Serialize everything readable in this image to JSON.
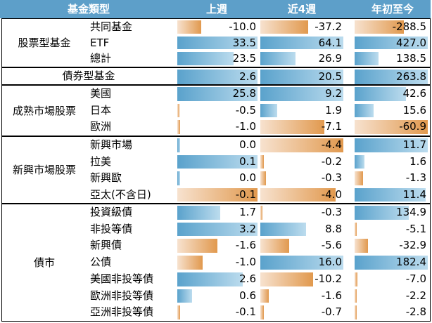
{
  "headers": {
    "category": "基金類型",
    "col1": "上週",
    "col2": "近4週",
    "col3": "年初至今"
  },
  "colors": {
    "header_bg": "#5d9fc9",
    "positive_bar": "#5aa2cc",
    "negative_bar": "#e1994e"
  },
  "groups": [
    {
      "label": "股票型基金",
      "rows": [
        {
          "name": "共同基金",
          "values": [
            -10.0,
            -37.2,
            -288.5
          ],
          "display": [
            "-10.0",
            "-37.2",
            "-288.5"
          ]
        },
        {
          "name": "ETF",
          "values": [
            33.5,
            64.1,
            427.0
          ],
          "display": [
            "33.5",
            "64.1",
            "427.0"
          ]
        },
        {
          "name": "總計",
          "values": [
            23.5,
            26.9,
            138.5
          ],
          "display": [
            "23.5",
            "26.9",
            "138.5"
          ]
        }
      ]
    },
    {
      "label": "債券型基金",
      "single": true,
      "rows": [
        {
          "name": "",
          "values": [
            2.6,
            20.5,
            263.8
          ],
          "display": [
            "2.6",
            "20.5",
            "263.8"
          ]
        }
      ]
    },
    {
      "label": "成熟市場股票",
      "rows": [
        {
          "name": "美國",
          "values": [
            25.8,
            9.2,
            42.6
          ],
          "display": [
            "25.8",
            "9.2",
            "42.6"
          ]
        },
        {
          "name": "日本",
          "values": [
            -0.5,
            1.9,
            15.6
          ],
          "display": [
            "-0.5",
            "1.9",
            "15.6"
          ]
        },
        {
          "name": "歐洲",
          "values": [
            -1.0,
            -7.1,
            -60.9
          ],
          "display": [
            "-1.0",
            "-7.1",
            "-60.9"
          ]
        }
      ]
    },
    {
      "label": "新興市場股票",
      "rows": [
        {
          "name": "新興市場",
          "values": [
            0.0,
            -4.4,
            11.7
          ],
          "display": [
            "0.0",
            "-4.4",
            "11.7"
          ]
        },
        {
          "name": "拉美",
          "values": [
            0.1,
            -0.2,
            1.6
          ],
          "display": [
            "0.1",
            "-0.2",
            "1.6"
          ]
        },
        {
          "name": "新興歐",
          "values": [
            0.0,
            -0.3,
            -1.3
          ],
          "display": [
            "0.0",
            "-0.3",
            "-1.3"
          ]
        },
        {
          "name": "亞太(不含日)",
          "values": [
            -0.1,
            -4.0,
            11.4
          ],
          "display": [
            "-0.1",
            "-4.0",
            "11.4"
          ]
        }
      ]
    },
    {
      "label": "債市",
      "rows": [
        {
          "name": "投資級債",
          "values": [
            1.7,
            -0.3,
            134.9
          ],
          "display": [
            "1.7",
            "-0.3",
            "134.9"
          ]
        },
        {
          "name": "非投等債",
          "values": [
            3.2,
            8.8,
            -5.1
          ],
          "display": [
            "3.2",
            "8.8",
            "-5.1"
          ]
        },
        {
          "name": "新興債",
          "values": [
            -1.6,
            -5.6,
            -32.9
          ],
          "display": [
            "-1.6",
            "-5.6",
            "-32.9"
          ]
        },
        {
          "name": "公債",
          "values": [
            -1.0,
            16.0,
            182.4
          ],
          "display": [
            "-1.0",
            "16.0",
            "182.4"
          ]
        },
        {
          "name": "美國非投等債",
          "values": [
            2.6,
            -10.2,
            -7.0
          ],
          "display": [
            "2.6",
            "-10.2",
            "-7.0"
          ]
        },
        {
          "name": "歐洲非投等債",
          "values": [
            0.6,
            -1.6,
            -2.2
          ],
          "display": [
            "0.6",
            "-1.6",
            "-2.2"
          ]
        },
        {
          "name": "亞洲非投等債",
          "values": [
            -0.1,
            -0.7,
            -2.8
          ],
          "display": [
            "-0.1",
            "-0.7",
            "-2.8"
          ]
        }
      ]
    }
  ]
}
